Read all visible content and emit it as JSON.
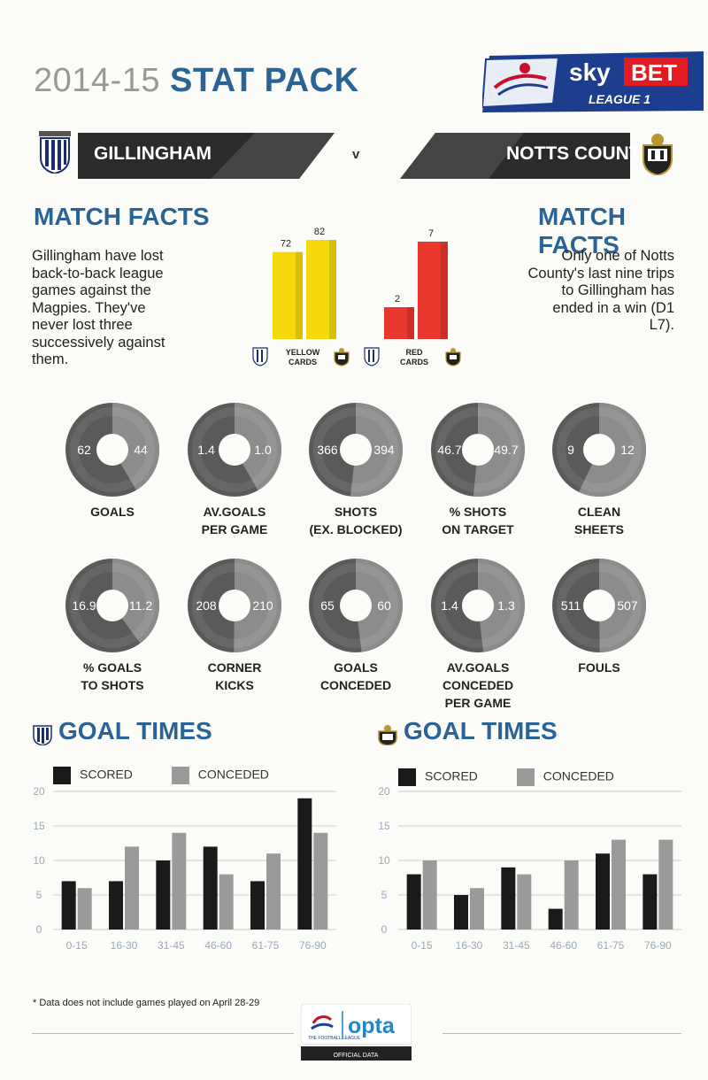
{
  "header": {
    "title_year": "2014-15",
    "title_main": "STAT PACK",
    "sponsor_top": "sky",
    "sponsor_bet": "BET",
    "sponsor_league": "LEAGUE 1"
  },
  "teams": {
    "home": "GILLINGHAM",
    "away": "NOTTS COUNTY",
    "vs": "v"
  },
  "match_facts": {
    "title": "MATCH FACTS",
    "home_text": [
      "Gillingham have lost",
      "back-to-back league",
      "games against the",
      "Magpies. They've",
      "never lost three",
      "successively against",
      "them."
    ],
    "away_text": [
      "Only one of Notts",
      "County's last nine trips",
      "to Gillingham has",
      "ended in a win (D1",
      "L7)."
    ]
  },
  "cards": {
    "yellow": {
      "label_lines": [
        "YELLOW",
        "CARDS"
      ],
      "home": 72,
      "away": 82,
      "color": "#f5d90a"
    },
    "red": {
      "label_lines": [
        "RED",
        "CARDS"
      ],
      "home": 2,
      "away": 7,
      "color": "#e8372c"
    }
  },
  "donuts": [
    {
      "label_lines": [
        "GOALS"
      ],
      "home": "62",
      "away": "44",
      "hv": 62,
      "av": 44
    },
    {
      "label_lines": [
        "AV.GOALS",
        "PER GAME"
      ],
      "home": "1.4",
      "away": "1.0",
      "hv": 1.4,
      "av": 1.0
    },
    {
      "label_lines": [
        "SHOTS",
        "(EX. BLOCKED)"
      ],
      "home": "366",
      "away": "394",
      "hv": 366,
      "av": 394
    },
    {
      "label_lines": [
        "% SHOTS",
        "ON TARGET"
      ],
      "home": "46.7",
      "away": "49.7",
      "hv": 46.7,
      "av": 49.7
    },
    {
      "label_lines": [
        "CLEAN",
        "SHEETS"
      ],
      "home": "9",
      "away": "12",
      "hv": 9,
      "av": 12
    },
    {
      "label_lines": [
        "% GOALS",
        "TO SHOTS"
      ],
      "home": "16.9",
      "away": "11.2",
      "hv": 16.9,
      "av": 11.2
    },
    {
      "label_lines": [
        "CORNER",
        "KICKS"
      ],
      "home": "208",
      "away": "210",
      "hv": 208,
      "av": 210
    },
    {
      "label_lines": [
        "GOALS",
        "CONCEDED"
      ],
      "home": "65",
      "away": "60",
      "hv": 65,
      "av": 60
    },
    {
      "label_lines": [
        "AV.GOALS CONCEDED",
        "PER GAME"
      ],
      "home": "1.4",
      "away": "1.3",
      "hv": 1.4,
      "av": 1.3
    },
    {
      "label_lines": [
        "FOULS"
      ],
      "home": "511",
      "away": "507",
      "hv": 511,
      "av": 507
    }
  ],
  "goal_times": {
    "title": "GOAL TIMES",
    "legend_scored": "SCORED",
    "legend_conceded": "CONCEDED"
  },
  "chart_data": [
    {
      "type": "bar",
      "title": "GOAL TIMES",
      "categories": [
        "0-15",
        "16-30",
        "31-45",
        "46-60",
        "61-75",
        "76-90"
      ],
      "series": [
        {
          "name": "SCORED",
          "values": [
            7,
            7,
            10,
            12,
            7,
            19
          ],
          "color": "#1a1a1a"
        },
        {
          "name": "CONCEDED",
          "values": [
            6,
            12,
            14,
            8,
            11,
            14
          ],
          "color": "#9a9a9a"
        }
      ],
      "yticks": [
        0,
        5,
        10,
        15,
        20
      ],
      "ylim": [
        0,
        20
      ],
      "grid": true
    },
    {
      "type": "bar",
      "title": "GOAL TIMES",
      "categories": [
        "0-15",
        "16-30",
        "31-45",
        "46-60",
        "61-75",
        "76-90"
      ],
      "series": [
        {
          "name": "SCORED",
          "values": [
            8,
            5,
            9,
            3,
            11,
            8
          ],
          "color": "#1a1a1a"
        },
        {
          "name": "CONCEDED",
          "values": [
            10,
            6,
            8,
            10,
            13,
            13
          ],
          "color": "#9a9a9a"
        }
      ],
      "yticks": [
        0,
        5,
        10,
        15,
        20
      ],
      "ylim": [
        0,
        20
      ],
      "grid": true
    }
  ],
  "footer": {
    "footnote": "* Data does not include games played on April 28-29",
    "opta_brand": "opta",
    "opta_sub": "OFFICIAL DATA",
    "league_mark": "THE FOOTBALL LEAGUE"
  },
  "colors": {
    "accent_blue": "#2a6496",
    "banner_dark": "#2b2b2b",
    "donut_dark": "#555555",
    "donut_light": "#8a8a8a"
  }
}
